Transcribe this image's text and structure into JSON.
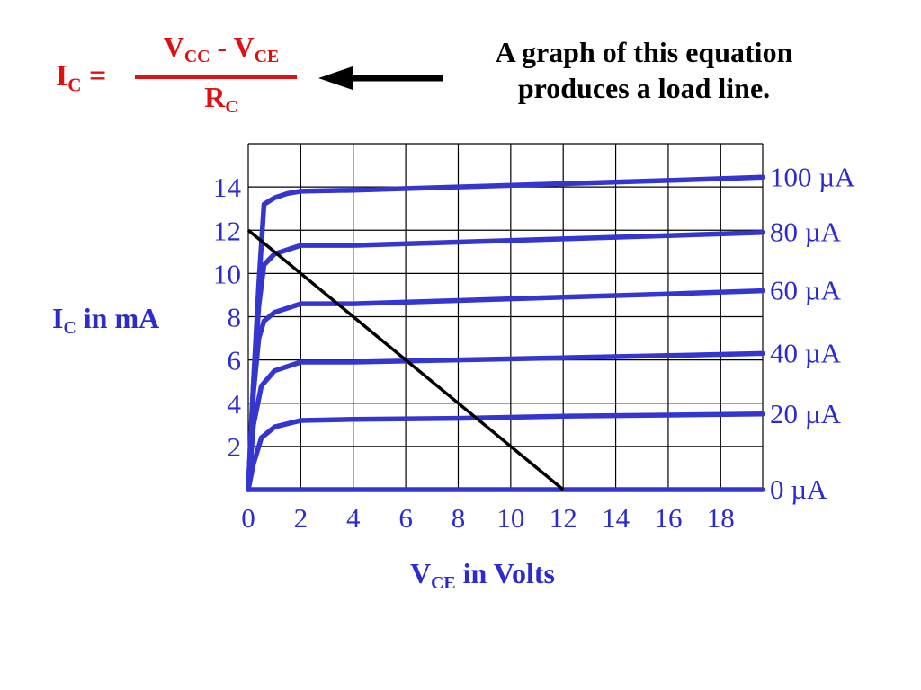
{
  "equation": {
    "lhs_main": "I",
    "lhs_sub": "C",
    "lhs_eq": " =",
    "num_v1": "V",
    "num_v1_sub": "CC",
    "num_minus": " - V",
    "num_v2_sub": "CE",
    "den_main": "R",
    "den_sub": "C"
  },
  "note": "A graph of this equation produces a load line.",
  "axis_labels": {
    "y_main": "I",
    "y_sub": "C",
    "y_rest": " in mA",
    "x_main": "V",
    "x_sub": "CE",
    "x_rest": " in Volts"
  },
  "colors": {
    "equation": "#e01010",
    "curves": "#3535d0",
    "labels": "#2b2bd0",
    "grid": "#000000",
    "load_line": "#000000"
  },
  "chart_data": {
    "type": "line",
    "x_ticks": [
      "0",
      "2",
      "4",
      "6",
      "8",
      "10",
      "12",
      "14",
      "16",
      "18"
    ],
    "y_ticks": [
      "2",
      "4",
      "6",
      "8",
      "10",
      "12",
      "14"
    ],
    "xlim": [
      0,
      19.6
    ],
    "ylim": [
      0,
      16
    ],
    "grid": true,
    "series": [
      {
        "name": "0 µA",
        "x": [
          0,
          19.6
        ],
        "y": [
          0,
          0
        ]
      },
      {
        "name": "20 µA",
        "x": [
          0,
          0.2,
          0.5,
          1,
          2,
          4,
          8,
          12,
          16,
          19.6
        ],
        "y": [
          0,
          1.2,
          2.4,
          2.9,
          3.2,
          3.25,
          3.3,
          3.4,
          3.45,
          3.5
        ]
      },
      {
        "name": "40 µA",
        "x": [
          0,
          0.2,
          0.5,
          1,
          2,
          4,
          8,
          12,
          16,
          19.6
        ],
        "y": [
          0,
          3.0,
          4.8,
          5.5,
          5.9,
          5.9,
          6.0,
          6.1,
          6.2,
          6.3
        ]
      },
      {
        "name": "60 µA",
        "x": [
          0,
          0.2,
          0.4,
          0.6,
          1,
          2,
          4,
          8,
          12,
          16,
          19.6
        ],
        "y": [
          0,
          4.5,
          7.0,
          7.8,
          8.2,
          8.6,
          8.6,
          8.75,
          8.9,
          9.05,
          9.2
        ]
      },
      {
        "name": "80 µA",
        "x": [
          0,
          0.2,
          0.4,
          0.6,
          1,
          2,
          4,
          8,
          12,
          16,
          19.6
        ],
        "y": [
          0,
          5.0,
          8.5,
          10.4,
          10.9,
          11.3,
          11.3,
          11.45,
          11.6,
          11.75,
          11.9
        ]
      },
      {
        "name": "100 µA",
        "x": [
          0,
          0.2,
          0.4,
          0.6,
          1,
          1.5,
          2,
          4,
          8,
          12,
          16,
          19.6
        ],
        "y": [
          0,
          5.0,
          9.5,
          13.2,
          13.5,
          13.7,
          13.8,
          13.85,
          14.0,
          14.15,
          14.3,
          14.45
        ]
      }
    ],
    "load_line": {
      "x": [
        0,
        12
      ],
      "y": [
        12,
        0
      ]
    },
    "curve_labels": [
      "100 µA",
      "80 µA",
      "60 µA",
      "40 µA",
      "20 µA",
      "0 µA"
    ]
  }
}
